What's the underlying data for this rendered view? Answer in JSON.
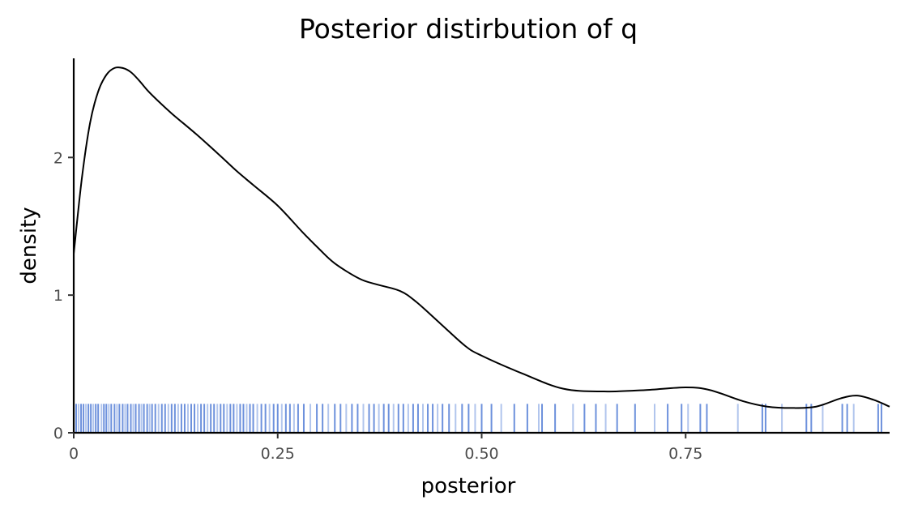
{
  "chart_data": {
    "type": "line",
    "title": "Posterior distirbution of q",
    "xlabel": "posterior",
    "ylabel": "density",
    "xlim": [
      0,
      1.0
    ],
    "ylim": [
      0,
      2.72
    ],
    "x_ticks": [
      {
        "value": 0,
        "label": "0"
      },
      {
        "value": 0.25,
        "label": "0.25"
      },
      {
        "value": 0.5,
        "label": "0.50"
      },
      {
        "value": 0.75,
        "label": "0.75"
      }
    ],
    "y_ticks": [
      {
        "value": 0,
        "label": "0"
      },
      {
        "value": 1,
        "label": "1"
      },
      {
        "value": 2,
        "label": "2"
      }
    ],
    "grid": false,
    "legend": "none",
    "series": [
      {
        "kind": "density",
        "color": "#000000",
        "x": [
          0,
          0.01,
          0.02,
          0.03,
          0.04,
          0.05,
          0.06,
          0.07,
          0.08,
          0.09,
          0.1,
          0.12,
          0.15,
          0.18,
          0.2,
          0.22,
          0.25,
          0.28,
          0.3,
          0.32,
          0.35,
          0.37,
          0.4,
          0.42,
          0.45,
          0.48,
          0.5,
          0.55,
          0.6,
          0.65,
          0.7,
          0.75,
          0.78,
          0.82,
          0.85,
          0.88,
          0.91,
          0.94,
          0.96,
          0.98,
          1.0
        ],
        "y": [
          1.3,
          1.85,
          2.25,
          2.48,
          2.6,
          2.65,
          2.65,
          2.62,
          2.56,
          2.49,
          2.43,
          2.32,
          2.17,
          2.01,
          1.9,
          1.8,
          1.65,
          1.46,
          1.34,
          1.23,
          1.12,
          1.08,
          1.03,
          0.95,
          0.79,
          0.63,
          0.56,
          0.43,
          0.32,
          0.3,
          0.31,
          0.33,
          0.31,
          0.23,
          0.19,
          0.18,
          0.19,
          0.25,
          0.27,
          0.24,
          0.19
        ]
      },
      {
        "kind": "rug",
        "colors": [
          "#3c6cd0",
          "#a9bfeb"
        ],
        "rug_height_density": 0.21,
        "x": [
          0.003,
          0.006,
          0.009,
          0.012,
          0.015,
          0.018,
          0.021,
          0.024,
          0.027,
          0.03,
          0.034,
          0.037,
          0.04,
          0.043,
          0.046,
          0.05,
          0.053,
          0.056,
          0.06,
          0.063,
          0.066,
          0.07,
          0.073,
          0.076,
          0.08,
          0.083,
          0.086,
          0.09,
          0.093,
          0.096,
          0.1,
          0.104,
          0.108,
          0.112,
          0.116,
          0.12,
          0.124,
          0.128,
          0.132,
          0.136,
          0.14,
          0.144,
          0.148,
          0.152,
          0.156,
          0.16,
          0.164,
          0.168,
          0.172,
          0.176,
          0.18,
          0.184,
          0.188,
          0.192,
          0.196,
          0.2,
          0.204,
          0.208,
          0.212,
          0.216,
          0.22,
          0.225,
          0.23,
          0.235,
          0.24,
          0.245,
          0.25,
          0.255,
          0.26,
          0.265,
          0.27,
          0.275,
          0.282,
          0.29,
          0.298,
          0.305,
          0.312,
          0.32,
          0.327,
          0.334,
          0.341,
          0.348,
          0.355,
          0.362,
          0.368,
          0.374,
          0.38,
          0.386,
          0.392,
          0.398,
          0.404,
          0.41,
          0.416,
          0.422,
          0.428,
          0.434,
          0.44,
          0.446,
          0.452,
          0.46,
          0.468,
          0.476,
          0.484,
          0.492,
          0.5,
          0.512,
          0.524,
          0.54,
          0.556,
          0.57,
          0.574,
          0.59,
          0.612,
          0.626,
          0.64,
          0.652,
          0.666,
          0.688,
          0.712,
          0.728,
          0.745,
          0.753,
          0.768,
          0.776,
          0.814,
          0.844,
          0.848,
          0.868,
          0.898,
          0.904,
          0.918,
          0.942,
          0.948,
          0.956,
          0.986,
          0.99
        ]
      }
    ]
  }
}
